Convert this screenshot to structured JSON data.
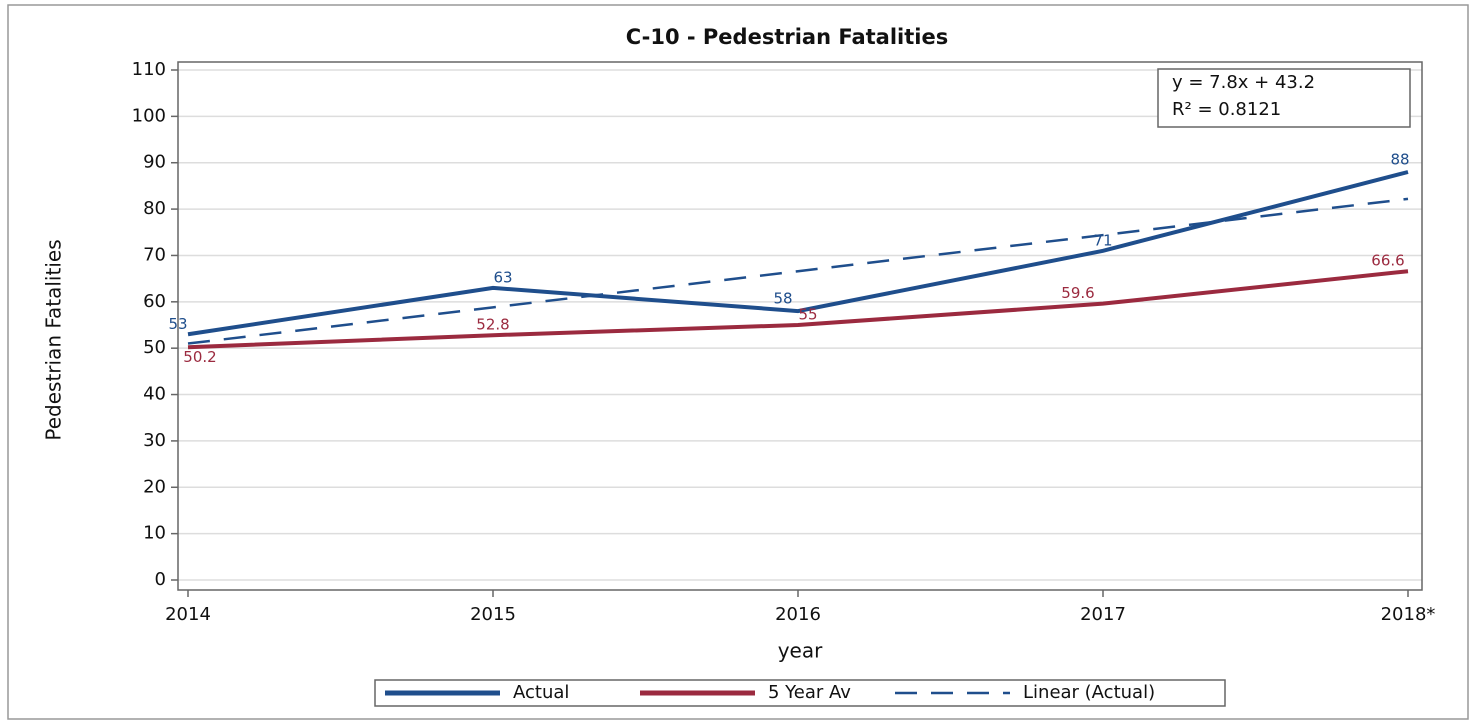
{
  "chart_data": {
    "type": "line",
    "title": "C-10 - Pedestrian Fatalities",
    "x_label": "year",
    "y_label": "Pedestrian Fatalities",
    "categories": [
      "2014",
      "2015",
      "2016",
      "2017",
      "2018*"
    ],
    "series": [
      {
        "name": "Actual",
        "color": "#1f4e8c",
        "dash": false,
        "values": [
          53,
          63,
          58,
          71,
          88
        ],
        "show_labels": true
      },
      {
        "name": "5 Year Av",
        "color": "#9b2a3f",
        "dash": false,
        "values": [
          50.2,
          52.8,
          55,
          59.6,
          66.6
        ],
        "show_labels": true
      },
      {
        "name": "Linear (Actual)",
        "color": "#1f4e8c",
        "dash": true,
        "values": [
          51,
          58.8,
          66.6,
          74.4,
          82.2
        ],
        "show_labels": false
      }
    ],
    "annotations": [
      "y  =  7.8x + 43.2",
      "R² =  0.8121"
    ],
    "ylim": [
      0,
      110
    ],
    "yticks": [
      0,
      10,
      20,
      30,
      40,
      50,
      60,
      70,
      80,
      90,
      100,
      110
    ],
    "grid": true,
    "legend": "bottom"
  }
}
